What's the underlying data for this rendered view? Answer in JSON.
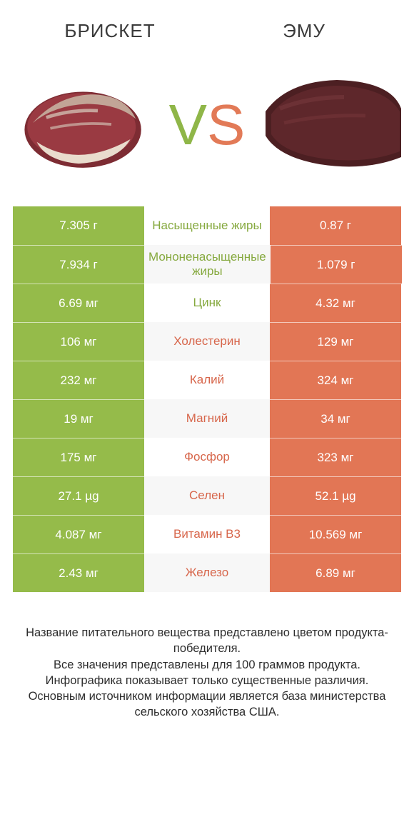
{
  "colors": {
    "green": "#95bb4a",
    "orange": "#e27655",
    "green_label": "#86a93f",
    "orange_label": "#d7664b",
    "row_alt_bg": "#f7f7f7",
    "text": "#333333",
    "white": "#ffffff"
  },
  "header": {
    "left_title": "БРИСКЕТ",
    "right_title": "ЭМУ",
    "vs_v": "V",
    "vs_s": "S"
  },
  "table": {
    "rows": [
      {
        "left": "7.305 г",
        "label": "Насыщенные жиры",
        "right": "0.87 г",
        "winner": "left"
      },
      {
        "left": "7.934 г",
        "label": "Мононенасыщенные жиры",
        "right": "1.079 г",
        "winner": "left"
      },
      {
        "left": "6.69 мг",
        "label": "Цинк",
        "right": "4.32 мг",
        "winner": "left"
      },
      {
        "left": "106 мг",
        "label": "Холестерин",
        "right": "129 мг",
        "winner": "right"
      },
      {
        "left": "232 мг",
        "label": "Калий",
        "right": "324 мг",
        "winner": "right"
      },
      {
        "left": "19 мг",
        "label": "Магний",
        "right": "34 мг",
        "winner": "right"
      },
      {
        "left": "175 мг",
        "label": "Фосфор",
        "right": "323 мг",
        "winner": "right"
      },
      {
        "left": "27.1 µg",
        "label": "Селен",
        "right": "52.1 µg",
        "winner": "right"
      },
      {
        "left": "4.087 мг",
        "label": "Витамин B3",
        "right": "10.569 мг",
        "winner": "right"
      },
      {
        "left": "2.43 мг",
        "label": "Железо",
        "right": "6.89 мг",
        "winner": "right"
      }
    ]
  },
  "footer": {
    "lines": [
      "Название питательного вещества представлено цветом продукта-победителя.",
      "Все значения представлены для 100 граммов продукта.",
      "Инфографика показывает только существенные различия.",
      "Основным источником информации является база министерства сельского хозяйства США."
    ]
  }
}
